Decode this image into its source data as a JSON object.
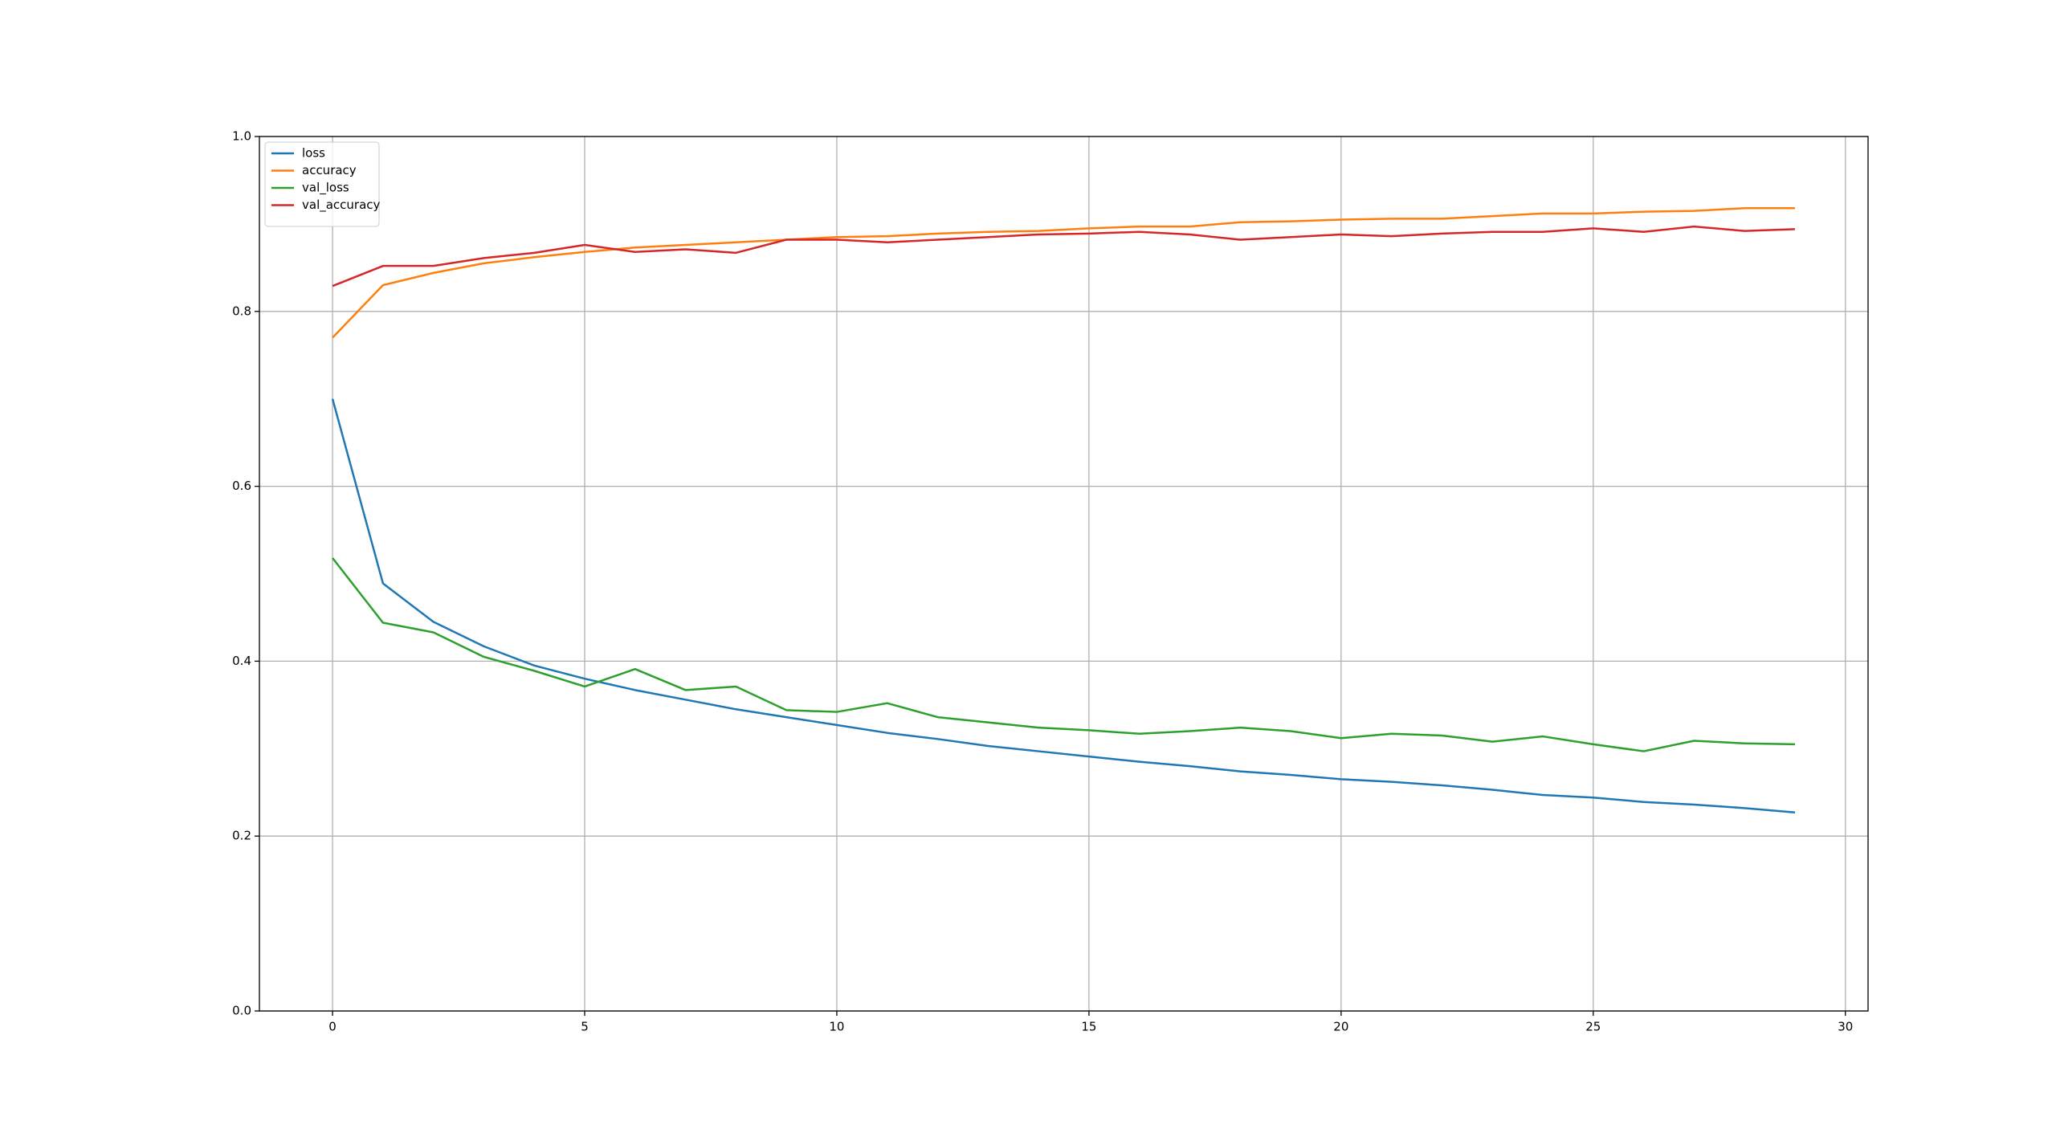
{
  "chart_data": {
    "type": "line",
    "x": [
      0,
      1,
      2,
      3,
      4,
      5,
      6,
      7,
      8,
      9,
      10,
      11,
      12,
      13,
      14,
      15,
      16,
      17,
      18,
      19,
      20,
      21,
      22,
      23,
      24,
      25,
      26,
      27,
      28,
      29
    ],
    "series": [
      {
        "name": "loss",
        "color": "#1f77b4",
        "values": [
          0.7,
          0.489,
          0.445,
          0.417,
          0.395,
          0.38,
          0.367,
          0.356,
          0.345,
          0.336,
          0.327,
          0.318,
          0.311,
          0.303,
          0.297,
          0.291,
          0.285,
          0.28,
          0.274,
          0.27,
          0.265,
          0.262,
          0.258,
          0.253,
          0.247,
          0.244,
          0.239,
          0.236,
          0.232,
          0.227
        ]
      },
      {
        "name": "accuracy",
        "color": "#ff7f0e",
        "values": [
          0.77,
          0.83,
          0.844,
          0.855,
          0.862,
          0.868,
          0.873,
          0.876,
          0.879,
          0.882,
          0.885,
          0.886,
          0.889,
          0.891,
          0.892,
          0.895,
          0.897,
          0.897,
          0.902,
          0.903,
          0.905,
          0.906,
          0.906,
          0.909,
          0.912,
          0.912,
          0.914,
          0.915,
          0.918,
          0.918
        ]
      },
      {
        "name": "val_loss",
        "color": "#2ca02c",
        "values": [
          0.518,
          0.444,
          0.433,
          0.405,
          0.389,
          0.371,
          0.391,
          0.367,
          0.371,
          0.344,
          0.342,
          0.352,
          0.336,
          0.33,
          0.324,
          0.321,
          0.317,
          0.32,
          0.324,
          0.32,
          0.312,
          0.317,
          0.315,
          0.308,
          0.314,
          0.305,
          0.297,
          0.309,
          0.306,
          0.305
        ]
      },
      {
        "name": "val_accuracy",
        "color": "#d62728",
        "values": [
          0.829,
          0.852,
          0.852,
          0.861,
          0.867,
          0.876,
          0.868,
          0.871,
          0.867,
          0.882,
          0.882,
          0.879,
          0.882,
          0.885,
          0.888,
          0.889,
          0.891,
          0.888,
          0.882,
          0.885,
          0.888,
          0.886,
          0.889,
          0.891,
          0.891,
          0.895,
          0.891,
          0.897,
          0.892,
          0.894
        ]
      }
    ],
    "xlim": [
      -1.45,
      30.45
    ],
    "xticks": [
      0,
      5,
      10,
      15,
      20,
      25,
      30
    ],
    "ylim": [
      0,
      1
    ],
    "yticks": [
      {
        "value": 0,
        "label": "0.0"
      },
      0.2,
      0.4,
      0.6,
      0.8,
      {
        "value": 1,
        "label": "1.0"
      }
    ],
    "grid": true,
    "legend": "upper-left"
  }
}
